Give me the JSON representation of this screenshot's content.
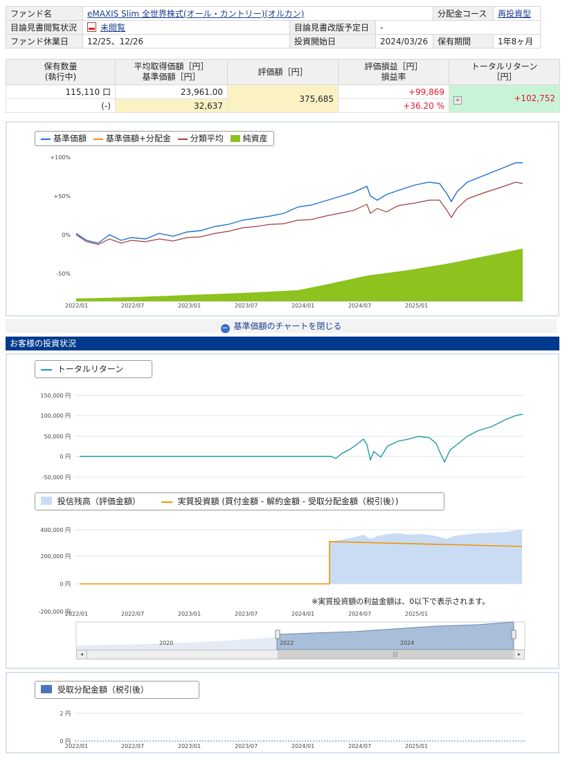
{
  "fund_info": {
    "fund_name_label": "ファンド名",
    "fund_name": "eMAXIS Slim 全世界株式(オール・カントリー)(オルカン)",
    "distribution_course_label": "分配金コース",
    "distribution_course": "再投資型",
    "prospectus_status_label": "目論見書閲覧状況",
    "prospectus_status": "未閲覧",
    "prospectus_revision_label": "目論見書改版予定日",
    "prospectus_revision": "-",
    "holiday_label": "ファンド休業日",
    "holiday": "12/25、12/26",
    "start_date_label": "投資開始日",
    "start_date": "2024/03/26",
    "holding_period_label": "保有期間",
    "holding_period": "1年8ヶ月"
  },
  "holdings": {
    "headers": {
      "quantity_1": "保有数量",
      "quantity_2": "(執行中)",
      "avg_1": "平均取得価額［円］",
      "avg_2": "基準価額［円］",
      "valuation": "評価額［円］",
      "pl_1": "評価損益［円］",
      "pl_2": "損益率",
      "tr_1": "トータルリターン",
      "tr_2": "［円］"
    },
    "quantity": "115,110 口",
    "executing": "(-)",
    "avg_price": "23,961.00",
    "nav": "32,637",
    "valuation": "375,685",
    "pl": "+99,869",
    "pl_rate": "+36.20 %",
    "total_return": "+102,752"
  },
  "chart1": {
    "legend": [
      "基準価額",
      "基準価額+分配金",
      "分類平均",
      "純資産"
    ],
    "y_ticks": [
      "+100%",
      "+50%",
      "0%",
      "-50%"
    ],
    "x_ticks": [
      "2022/01",
      "2022/07",
      "2023/01",
      "2023/07",
      "2024/01",
      "2024/07",
      "2025/01"
    ],
    "close_label": "基準価額のチャートを閉じる"
  },
  "section_title": "お客様の投資状況",
  "chart2": {
    "legend": "トータルリターン",
    "y_ticks": [
      "150,000 円",
      "100,000 円",
      "50,000 円",
      "0 円",
      "-50,000 円"
    ]
  },
  "chart3": {
    "legend_1": "投信残高（評価金額）",
    "legend_2": "実質投資額 (買付金額 - 解約金額 - 受取分配金額（税引後）)",
    "y_ticks": [
      "400,000 円",
      "200,000 円",
      "0 円",
      "-200,000 円"
    ],
    "x_ticks": [
      "2022/01",
      "2022/07",
      "2023/01",
      "2023/07",
      "2024/01",
      "2024/07",
      "2025/01"
    ],
    "note": "※実質投資額の利益金額は、0以下で表示されます。",
    "navigator_labels": [
      "2020",
      "2022",
      "2024"
    ]
  },
  "chart4": {
    "legend": "受取分配金額（税引後）",
    "y_ticks": [
      "2 円",
      "0 円"
    ],
    "x_ticks": [
      "2022/01",
      "2022/07",
      "2023/01",
      "2023/07",
      "2024/01",
      "2024/07",
      "2025/01"
    ]
  },
  "colors": {
    "nav_line": "#1f6fd1",
    "nav_dist_line": "#f08a1c",
    "category_avg": "#a33a3a",
    "net_assets": "#8dc21f",
    "total_return": "#1a96a8",
    "balance_fill": "#c9dcf3",
    "invested_line": "#f39200",
    "dividend": "#4a76b8",
    "header_bar": "#003a8c"
  }
}
